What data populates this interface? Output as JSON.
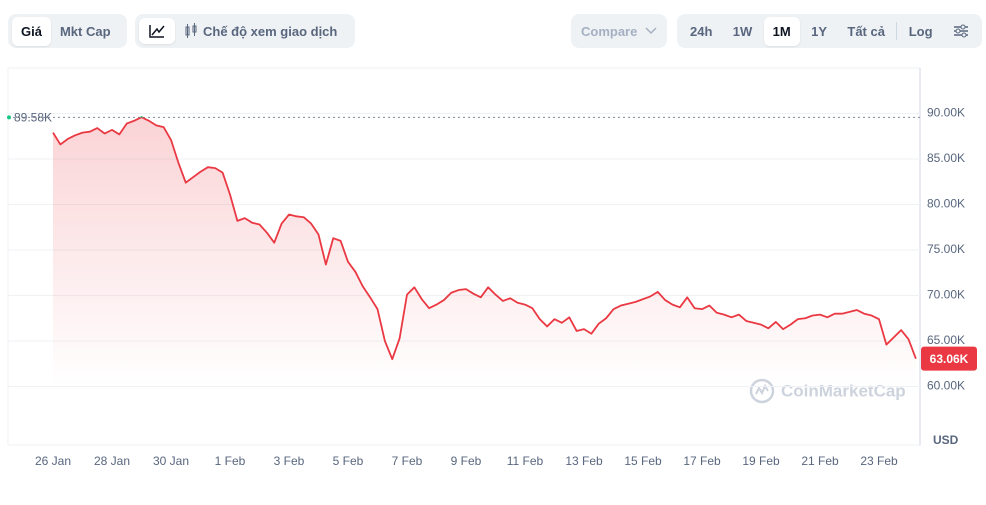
{
  "toolbar": {
    "view_tabs": [
      "Giá",
      "Mkt Cap"
    ],
    "trading_view": "Chế độ xem giao dịch",
    "compare": "Compare",
    "ranges": [
      "24h",
      "1W",
      "1M",
      "1Y",
      "Tất cả"
    ],
    "log": "Log"
  },
  "chart_data": {
    "type": "line",
    "categories": [
      "26 Jan",
      null,
      null,
      null,
      null,
      null,
      null,
      null,
      "28 Jan",
      null,
      null,
      null,
      null,
      null,
      null,
      null,
      "30 Jan",
      null,
      null,
      null,
      null,
      null,
      null,
      null,
      "1 Feb",
      null,
      null,
      null,
      null,
      null,
      null,
      null,
      "3 Feb",
      null,
      null,
      null,
      null,
      null,
      null,
      null,
      "5 Feb",
      null,
      null,
      null,
      null,
      null,
      null,
      null,
      "7 Feb",
      null,
      null,
      null,
      null,
      null,
      null,
      null,
      "9 Feb",
      null,
      null,
      null,
      null,
      null,
      null,
      null,
      "11 Feb",
      null,
      null,
      null,
      null,
      null,
      null,
      null,
      "13 Feb",
      null,
      null,
      null,
      null,
      null,
      null,
      null,
      "15 Feb",
      null,
      null,
      null,
      null,
      null,
      null,
      null,
      "17 Feb",
      null,
      null,
      null,
      null,
      null,
      null,
      null,
      "19 Feb",
      null,
      null,
      null,
      null,
      null,
      null,
      null,
      "21 Feb",
      null,
      null,
      null,
      null,
      null,
      null,
      null,
      "23 Feb",
      null,
      null,
      null,
      null,
      null
    ],
    "series": [
      {
        "color": "#ea3943",
        "above_color": "#16c784",
        "values": [
          87900,
          86600,
          87200,
          87600,
          87900,
          88000,
          88400,
          87800,
          88200,
          87700,
          88900,
          89200,
          89600,
          89200,
          88700,
          88500,
          87100,
          84600,
          82400,
          83000,
          83600,
          84100,
          84000,
          83500,
          81100,
          78200,
          78500,
          78000,
          77800,
          76900,
          75800,
          77900,
          78900,
          78700,
          78600,
          77900,
          76700,
          73400,
          76300,
          76000,
          73700,
          72600,
          71000,
          69800,
          68500,
          65000,
          63000,
          65300,
          70100,
          70900,
          69600,
          68600,
          69000,
          69500,
          70300,
          70600,
          70700,
          70200,
          69800,
          70900,
          70100,
          69400,
          69700,
          69200,
          69000,
          68600,
          67400,
          66600,
          67400,
          67000,
          67600,
          66100,
          66300,
          65800,
          66900,
          67500,
          68500,
          68900,
          69100,
          69300,
          69600,
          69900,
          70400,
          69500,
          69000,
          68700,
          69800,
          68600,
          68500,
          68900,
          68100,
          67900,
          67600,
          67900,
          67200,
          67000,
          66800,
          66400,
          67100,
          66300,
          66800,
          67400,
          67500,
          67800,
          67900,
          67600,
          68000,
          68000,
          68200,
          68400,
          68000,
          67800,
          67400,
          64600,
          65400,
          66200,
          65200,
          63060
        ],
        "value_labels": [
          null,
          null,
          null,
          null,
          null,
          null,
          null,
          null,
          null,
          null,
          null,
          null,
          null,
          null,
          null,
          null,
          null,
          null,
          null,
          null,
          null,
          null,
          null,
          null,
          null,
          null,
          null,
          null,
          null,
          null,
          null,
          null,
          null,
          null,
          null,
          null,
          null,
          null,
          null,
          null,
          null,
          null,
          null,
          null,
          null,
          null,
          null,
          null,
          null,
          null,
          null,
          null,
          null,
          null,
          null,
          null,
          null,
          null,
          null,
          null,
          null,
          null,
          null,
          null,
          null,
          null,
          null,
          null,
          null,
          null,
          null,
          null,
          null,
          null,
          null,
          null,
          null,
          null,
          null,
          null,
          null,
          null,
          null,
          null,
          null,
          null,
          null,
          null,
          null,
          null,
          null,
          null,
          null,
          null,
          null,
          null,
          null,
          null,
          null,
          null,
          null,
          null,
          null,
          null,
          null,
          null,
          null,
          null,
          null,
          null,
          null,
          null,
          null,
          null,
          null,
          null,
          null,
          "63.06K"
        ]
      }
    ],
    "reference": {
      "value": 89580,
      "label": "89.58K"
    },
    "ylim": [
      55000,
      95000
    ],
    "yticks": [
      {
        "value": 60000,
        "label": "60.00K"
      },
      {
        "value": 65000,
        "label": "65.00K"
      },
      {
        "value": 70000,
        "label": "70.00K"
      },
      {
        "value": 75000,
        "label": "75.00K"
      },
      {
        "value": 80000,
        "label": "80.00K"
      },
      {
        "value": 85000,
        "label": "85.00K"
      },
      {
        "value": 90000,
        "label": "90.00K"
      }
    ],
    "grid": true,
    "unit": "USD",
    "watermark": "CoinMarketCap"
  }
}
